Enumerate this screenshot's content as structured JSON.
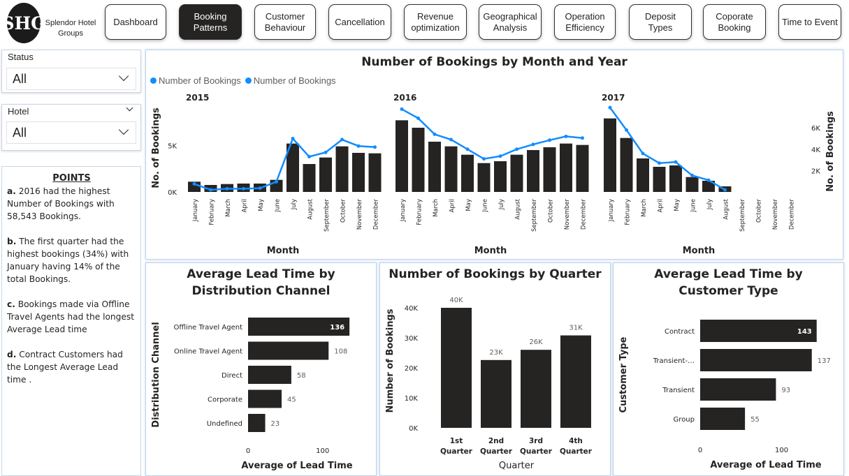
{
  "brand": {
    "logo_text": "SHG",
    "name": "Splendor Hotel Groups"
  },
  "nav": [
    {
      "label": "Dashboard",
      "active": false
    },
    {
      "label": "Booking Patterns",
      "active": true
    },
    {
      "label": "Customer Behaviour",
      "active": false
    },
    {
      "label": "Cancellation",
      "active": false
    },
    {
      "label": "Revenue optimization",
      "active": false
    },
    {
      "label": "Geographical Analysis",
      "active": false
    },
    {
      "label": "Operation Efficiency",
      "active": false
    },
    {
      "label": "Deposit Types",
      "active": false
    },
    {
      "label": "Coporate Booking",
      "active": false
    },
    {
      "label": "Time to Event",
      "active": false
    }
  ],
  "filters": {
    "status": {
      "label": "Status",
      "value": "All"
    },
    "hotel": {
      "label": "Hotel",
      "value": "All"
    }
  },
  "points": {
    "title": "POINTS",
    "items": [
      {
        "tag": "a.",
        "text": " 2016 had the highest Number of Bookings with 58,543 Bookings."
      },
      {
        "tag": "b.",
        "text": " The first quarter had the highest bookings (34%) with January having 14% of the total Bookings."
      },
      {
        "tag": "c.",
        "text": " Bookings made via Offline Travel Agents had the longest Average Lead time"
      },
      {
        "tag": "d.",
        "text": " Contract Customers had the Longest Average Lead time ."
      }
    ]
  },
  "colors": {
    "bar": "#252423",
    "line": "#118dff",
    "accent": "#118dff"
  },
  "chart_data": [
    {
      "type": "bar",
      "title": "Number of Bookings by Month and Year",
      "legend": [
        "Number of Bookings",
        "Number of Bookings"
      ],
      "legend_position": "top-left",
      "ylabel": "No. of Bookings",
      "y2label": "No. of Bookings",
      "xlabel": "Month",
      "yticks": [
        "0K",
        "5K"
      ],
      "y2ticks": [
        "2K",
        "4K",
        "6K"
      ],
      "ylim": [
        0,
        9000
      ],
      "y2lim": [
        0,
        8000
      ],
      "months": [
        "January",
        "February",
        "March",
        "April",
        "May",
        "June",
        "July",
        "August",
        "September",
        "October",
        "November",
        "December"
      ],
      "series": [
        {
          "name": "2015",
          "bar_values": [
            1100,
            750,
            850,
            900,
            900,
            1300,
            5200,
            3000,
            3700,
            4900,
            4200,
            4150
          ],
          "line_values": [
            750,
            200,
            300,
            300,
            350,
            950,
            5000,
            3300,
            3700,
            4900,
            4300,
            4200
          ]
        },
        {
          "name": "2016",
          "bar_values": [
            7700,
            6900,
            5400,
            4900,
            4000,
            3100,
            3300,
            4000,
            4500,
            4800,
            5200,
            5050
          ],
          "line_values": [
            7750,
            6900,
            5400,
            4900,
            4000,
            3100,
            3350,
            4000,
            4450,
            4850,
            5200,
            5050
          ]
        },
        {
          "name": "2017",
          "bar_values": [
            7900,
            5800,
            3600,
            2700,
            2850,
            1600,
            1200,
            600,
            0,
            0,
            0,
            0
          ],
          "line_values": [
            7900,
            5800,
            3600,
            2700,
            2800,
            1550,
            1100,
            200,
            null,
            null,
            null,
            null
          ]
        }
      ]
    },
    {
      "type": "bar",
      "orientation": "horizontal",
      "title": "Average Lead Time by Distribution Channel",
      "ylabel": "Distribution Channel",
      "xlabel": "Average of Lead Time",
      "xticks": [
        "0",
        "100"
      ],
      "xlim": [
        0,
        140
      ],
      "categories": [
        "Offline Travel Agent",
        "Online Travel Agent",
        "Direct",
        "Corporate",
        "Undefined"
      ],
      "values": [
        136,
        108,
        58,
        45,
        23
      ],
      "labels": [
        "136",
        "108",
        "58",
        "45",
        "23"
      ]
    },
    {
      "type": "bar",
      "title": "Number of Bookings by Quarter",
      "ylabel": "Number of Bookings",
      "xlabel": "Quarter",
      "yticks": [
        "0K",
        "10K",
        "20K",
        "30K",
        "40K"
      ],
      "ylim": [
        0,
        40000
      ],
      "categories": [
        "1st Quarter",
        "2nd Quarter",
        "3rd Quarter",
        "4th Quarter"
      ],
      "values": [
        40000,
        22600,
        26000,
        30800
      ],
      "labels": [
        "40K",
        "23K",
        "26K",
        "31K"
      ]
    },
    {
      "type": "bar",
      "orientation": "horizontal",
      "title": "Average Lead Time by Customer Type",
      "ylabel": "Customer Type",
      "xlabel": "Average of Lead Time",
      "xticks": [
        "0",
        "100"
      ],
      "xlim": [
        0,
        140
      ],
      "categories": [
        "Contract",
        "Transient-…",
        "Transient",
        "Group"
      ],
      "values": [
        143,
        137,
        93,
        55
      ],
      "labels": [
        "143",
        "137",
        "93",
        "55"
      ]
    }
  ]
}
